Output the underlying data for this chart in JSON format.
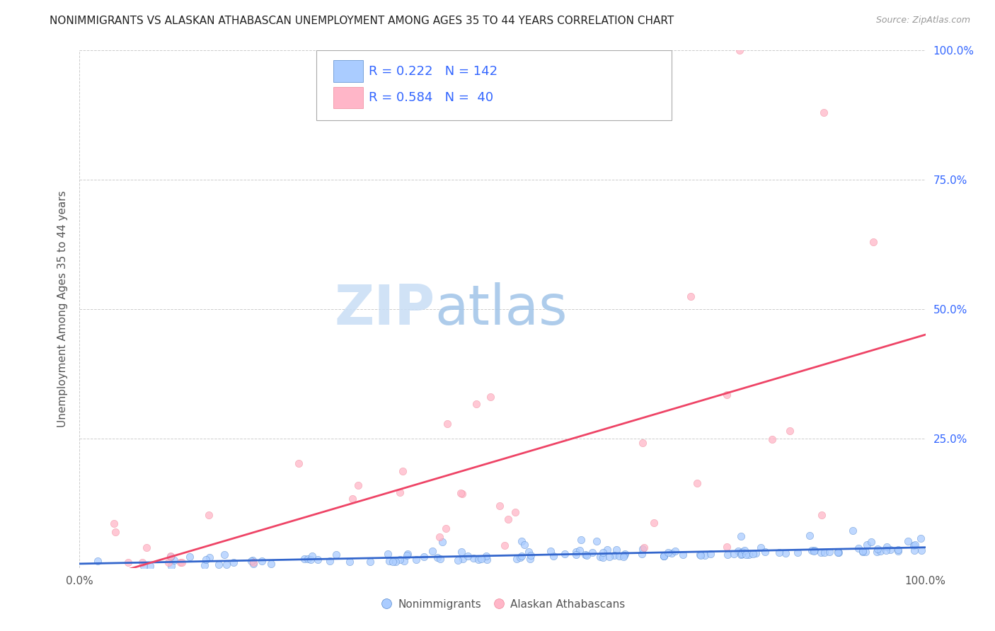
{
  "title": "NONIMMIGRANTS VS ALASKAN ATHABASCAN UNEMPLOYMENT AMONG AGES 35 TO 44 YEARS CORRELATION CHART",
  "source": "Source: ZipAtlas.com",
  "ylabel": "Unemployment Among Ages 35 to 44 years",
  "xlim": [
    0,
    1
  ],
  "ylim": [
    0,
    1
  ],
  "xticks": [
    0.0,
    0.25,
    0.5,
    0.75,
    1.0
  ],
  "xticklabels": [
    "0.0%",
    "",
    "",
    "",
    "100.0%"
  ],
  "yticks": [
    0.0,
    0.25,
    0.5,
    0.75,
    1.0
  ],
  "yticklabels": [
    "",
    "25.0%",
    "50.0%",
    "75.0%",
    "100.0%"
  ],
  "blue_R": 0.222,
  "blue_N": 142,
  "pink_R": 0.584,
  "pink_N": 40,
  "blue_color": "#aaccff",
  "pink_color": "#ffb6c8",
  "blue_edge_color": "#5588cc",
  "pink_edge_color": "#ee8899",
  "blue_line_color": "#3366cc",
  "pink_line_color": "#ee4466",
  "legend_label_blue": "Nonimmigrants",
  "legend_label_pink": "Alaskan Athabascans",
  "watermark_zip": "ZIP",
  "watermark_atlas": "atlas",
  "background_color": "#ffffff",
  "grid_color": "#cccccc",
  "title_color": "#222222",
  "axis_label_color": "#555555",
  "R_N_color": "#3366ff",
  "seed": 1234
}
